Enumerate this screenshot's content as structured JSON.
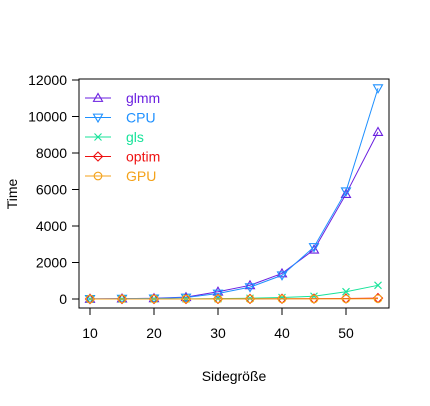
{
  "chart_data": {
    "type": "line",
    "xlabel": "Sidegröße",
    "ylabel": "Time",
    "xlim": [
      10,
      55
    ],
    "ylim": [
      0,
      12000
    ],
    "x": [
      10,
      15,
      20,
      25,
      30,
      35,
      40,
      45,
      50,
      55
    ],
    "x_ticks": [
      "10",
      "20",
      "30",
      "40",
      "50"
    ],
    "x_tick_values": [
      10,
      20,
      30,
      40,
      50
    ],
    "y_ticks": [
      "0",
      "2000",
      "4000",
      "6000",
      "8000",
      "10000",
      "12000"
    ],
    "y_tick_values": [
      0,
      2000,
      4000,
      6000,
      8000,
      10000,
      12000
    ],
    "grid": false,
    "legend_position": "top-left",
    "series": [
      {
        "name": "glmm",
        "color": "#6a1fe0",
        "marker": "triangle-up",
        "values": [
          5,
          20,
          40,
          100,
          400,
          750,
          1400,
          2700,
          5750,
          9150
        ]
      },
      {
        "name": "CPU",
        "color": "#1e90ff",
        "marker": "triangle-down",
        "values": [
          5,
          15,
          30,
          80,
          300,
          650,
          1300,
          2850,
          5900,
          11550
        ]
      },
      {
        "name": "gls",
        "color": "#17e39a",
        "marker": "x",
        "values": [
          0,
          2,
          5,
          10,
          20,
          40,
          80,
          150,
          400,
          750
        ]
      },
      {
        "name": "optim",
        "color": "#ee1111",
        "marker": "diamond",
        "values": [
          0,
          1,
          2,
          3,
          5,
          8,
          12,
          20,
          30,
          50
        ]
      },
      {
        "name": "GPU",
        "color": "#f4a21a",
        "marker": "circle",
        "values": [
          0,
          1,
          1,
          2,
          3,
          4,
          5,
          7,
          10,
          15
        ]
      }
    ]
  }
}
